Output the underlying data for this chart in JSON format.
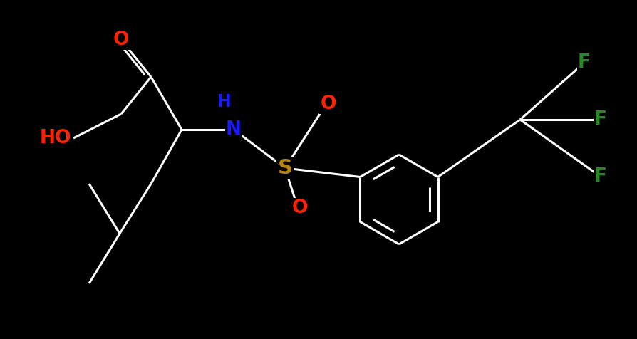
{
  "background_color": "#000000",
  "bond_color": "#ffffff",
  "bond_width": 2.2,
  "figsize": [
    8.95,
    4.76
  ],
  "dpi": 100,
  "colors": {
    "O": "#ff2200",
    "N": "#1a1aff",
    "S": "#b8860b",
    "F": "#228b22",
    "C": "#ffffff"
  },
  "fontsize": 18
}
